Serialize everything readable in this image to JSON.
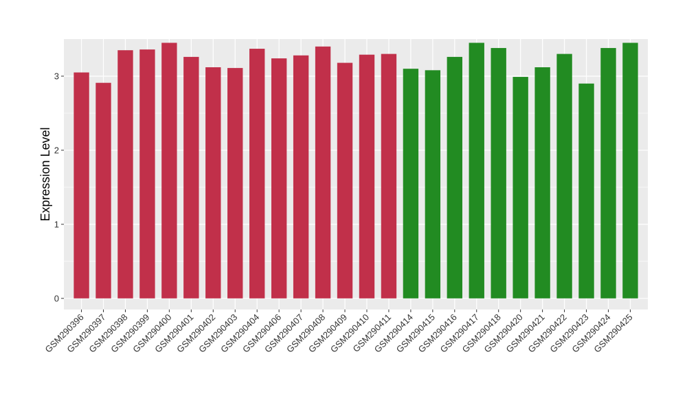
{
  "chart_data": {
    "type": "bar",
    "title": "",
    "xlabel": "",
    "ylabel": "Expression Level",
    "ylim": [
      -0.15,
      3.5
    ],
    "yticks": [
      0,
      1,
      2,
      3
    ],
    "grid": true,
    "legend": "none",
    "panel_background": "#ebebeb",
    "categories": [
      "GSM290396",
      "GSM290397",
      "GSM290398",
      "GSM290399",
      "GSM290400",
      "GSM290401",
      "GSM290402",
      "GSM290403",
      "GSM290404",
      "GSM290406",
      "GSM290407",
      "GSM290408",
      "GSM290409",
      "GSM290410",
      "GSM290411",
      "GSM290414",
      "GSM290415",
      "GSM290416",
      "GSM290417",
      "GSM290418",
      "GSM290420",
      "GSM290421",
      "GSM290422",
      "GSM290423",
      "GSM290424",
      "GSM290425"
    ],
    "values": [
      3.05,
      2.91,
      3.35,
      3.36,
      3.45,
      3.26,
      3.12,
      3.11,
      3.37,
      3.24,
      3.28,
      3.4,
      3.18,
      3.29,
      3.3,
      3.1,
      3.08,
      3.26,
      3.45,
      3.38,
      2.99,
      3.12,
      3.3,
      2.9,
      3.38,
      3.45
    ],
    "colors": [
      "#c1304a",
      "#c1304a",
      "#c1304a",
      "#c1304a",
      "#c1304a",
      "#c1304a",
      "#c1304a",
      "#c1304a",
      "#c1304a",
      "#c1304a",
      "#c1304a",
      "#c1304a",
      "#c1304a",
      "#c1304a",
      "#c1304a",
      "#228b22",
      "#228b22",
      "#228b22",
      "#228b22",
      "#228b22",
      "#228b22",
      "#228b22",
      "#228b22",
      "#228b22",
      "#228b22",
      "#228b22"
    ]
  }
}
